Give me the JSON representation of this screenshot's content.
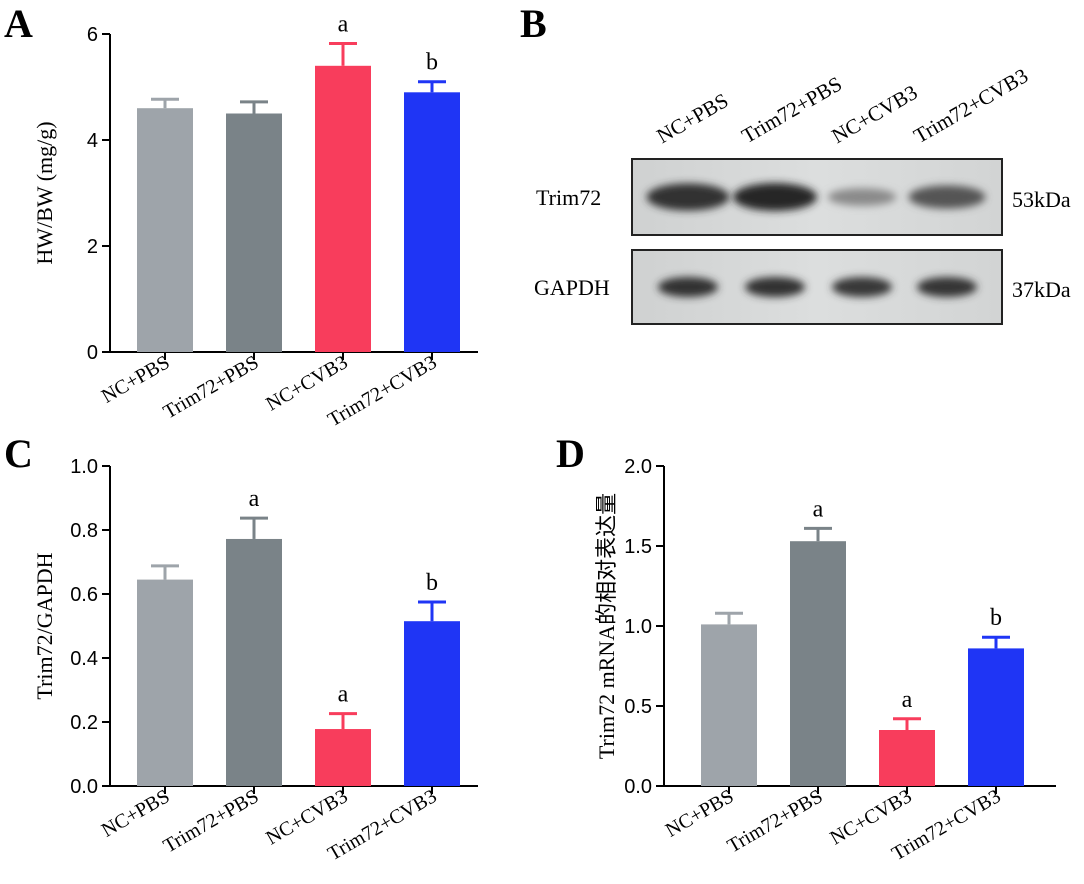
{
  "panels": {
    "a": {
      "letter": "A"
    },
    "b": {
      "letter": "B"
    },
    "c": {
      "letter": "C"
    },
    "d": {
      "letter": "D"
    }
  },
  "chart_data": [
    {
      "type": "bar",
      "panel": "A",
      "categories": [
        "NC+PBS",
        "Trim72+PBS",
        "NC+CVB3",
        "Trim72+CVB3"
      ],
      "values": [
        4.6,
        4.5,
        5.4,
        4.9
      ],
      "errors": [
        0.17,
        0.22,
        0.42,
        0.2
      ],
      "significance": [
        "",
        "",
        "a",
        "b"
      ],
      "colors": [
        "#9ea4aa",
        "#7a8388",
        "#f83d5c",
        "#1f35f5"
      ],
      "ylabel": "HW/BW (mg/g)",
      "ylim": [
        0,
        6
      ],
      "yticks": [
        0,
        2,
        4,
        6
      ],
      "ytick_labels": [
        "0",
        "2",
        "4",
        "6"
      ]
    },
    {
      "type": "bar",
      "panel": "C",
      "categories": [
        "NC+PBS",
        "Trim72+PBS",
        "NC+CVB3",
        "Trim72+CVB3"
      ],
      "values": [
        0.645,
        0.772,
        0.178,
        0.515
      ],
      "errors": [
        0.043,
        0.065,
        0.048,
        0.06
      ],
      "significance": [
        "",
        "a",
        "a",
        "b"
      ],
      "colors": [
        "#9ea4aa",
        "#7a8388",
        "#f83d5c",
        "#1f35f5"
      ],
      "ylabel": "Trim72/GAPDH",
      "ylim": [
        0,
        1.0
      ],
      "yticks": [
        0,
        0.2,
        0.4,
        0.6,
        0.8,
        1.0
      ],
      "ytick_labels": [
        "0.0",
        "0.2",
        "0.4",
        "0.6",
        "0.8",
        "1.0"
      ]
    },
    {
      "type": "bar",
      "panel": "D",
      "categories": [
        "NC+PBS",
        "Trim72+PBS",
        "NC+CVB3",
        "Trim72+CVB3"
      ],
      "values": [
        1.01,
        1.53,
        0.35,
        0.86
      ],
      "errors": [
        0.07,
        0.08,
        0.07,
        0.07
      ],
      "significance": [
        "",
        "a",
        "a",
        "b"
      ],
      "colors": [
        "#9ea4aa",
        "#7a8388",
        "#f83d5c",
        "#1f35f5"
      ],
      "ylabel": "Trim72 mRNA的相对表达量",
      "ylim": [
        0,
        2.0
      ],
      "yticks": [
        0,
        0.5,
        1.0,
        1.5,
        2.0
      ],
      "ytick_labels": [
        "0.0",
        "0.5",
        "1.0",
        "1.5",
        "2.0"
      ]
    }
  ],
  "blot": {
    "lanes": [
      "NC+PBS",
      "Trim72+PBS",
      "NC+CVB3",
      "Trim72+CVB3"
    ],
    "rows": [
      {
        "protein": "Trim72",
        "size": "53kDa",
        "intensities": [
          0.95,
          1.0,
          0.35,
          0.7
        ]
      },
      {
        "protein": "GAPDH",
        "size": "37kDa",
        "intensities": [
          0.95,
          0.95,
          0.9,
          0.92
        ]
      }
    ]
  }
}
